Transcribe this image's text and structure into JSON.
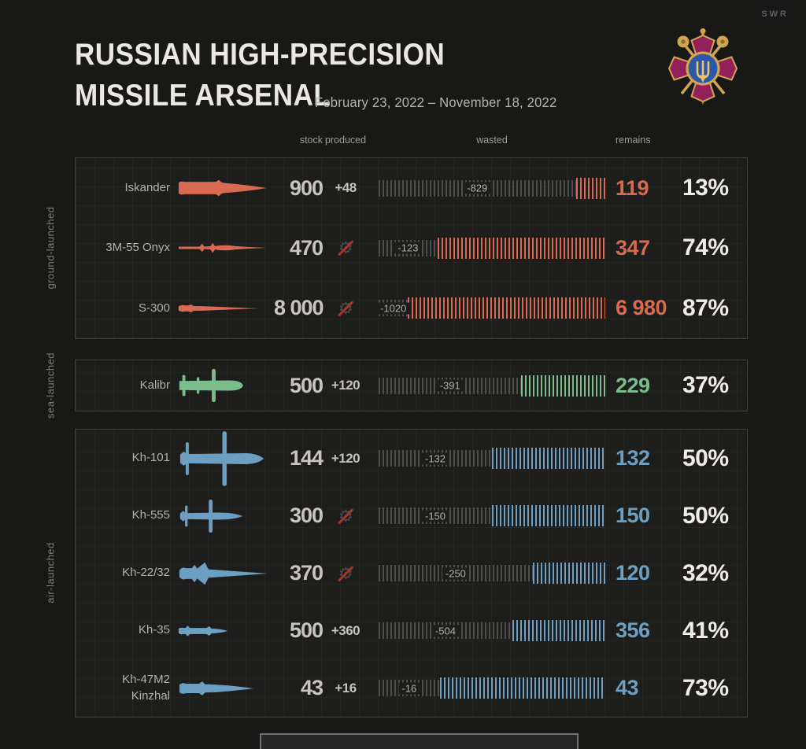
{
  "logo": "SWR",
  "header": {
    "title_line1": "RUSSIAN HIGH-PRECISION",
    "title_line2": "MISSILE ARSENAL",
    "subtitle": "February 23, 2022 – November 18, 2022"
  },
  "columns": {
    "stock": "stock",
    "produced": "produced",
    "wasted": "wasted",
    "remains": "remains"
  },
  "colors": {
    "ground": "#d76a50",
    "sea": "#7cbd8d",
    "air": "#6d9fc2"
  },
  "groups": [
    {
      "id": "ground",
      "label": "ground-launched",
      "color_key": "ground",
      "rows": [
        {
          "name": "Iskander",
          "missile": "iskander",
          "stock": "900",
          "produced": "+48",
          "wasted": "-829",
          "remains": "119",
          "percent": "13%",
          "percent_value": 13
        },
        {
          "name": "3M-55 Onyx",
          "missile": "onyx",
          "stock": "470",
          "produced": null,
          "wasted": "-123",
          "remains": "347",
          "percent": "74%",
          "percent_value": 74
        },
        {
          "name": "S-300",
          "missile": "s300",
          "stock": "8 000",
          "produced": null,
          "wasted": "-1020",
          "remains": "6 980",
          "percent": "87%",
          "percent_value": 87
        }
      ]
    },
    {
      "id": "sea",
      "label": "sea-launched",
      "color_key": "sea",
      "rows": [
        {
          "name": "Kalibr",
          "missile": "kalibr",
          "stock": "500",
          "produced": "+120",
          "wasted": "-391",
          "remains": "229",
          "percent": "37%",
          "percent_value": 37
        }
      ]
    },
    {
      "id": "air",
      "label": "air-launched",
      "color_key": "air",
      "rows": [
        {
          "name": "Kh-101",
          "missile": "kh101",
          "stock": "144",
          "produced": "+120",
          "wasted": "-132",
          "remains": "132",
          "percent": "50%",
          "percent_value": 50
        },
        {
          "name": "Kh-555",
          "missile": "kh555",
          "stock": "300",
          "produced": null,
          "wasted": "-150",
          "remains": "150",
          "percent": "50%",
          "percent_value": 50
        },
        {
          "name": "Kh-22/32",
          "missile": "kh2232",
          "stock": "370",
          "produced": null,
          "wasted": "-250",
          "remains": "120",
          "percent": "32%",
          "percent_value": 32
        },
        {
          "name": "Kh-35",
          "missile": "kh35",
          "stock": "500",
          "produced": "+360",
          "wasted": "-504",
          "remains": "356",
          "percent": "41%",
          "percent_value": 41
        },
        {
          "name": "Kh-47M2 Kinzhal",
          "missile": "kinzhal",
          "stock": "43",
          "produced": "+16",
          "wasted": "-16",
          "remains": "43",
          "percent": "73%",
          "percent_value": 73
        }
      ]
    }
  ],
  "chart_data": {
    "type": "bar",
    "title": "RUSSIAN HIGH-PRECISION MISSILE ARSENAL",
    "subtitle": "February 23, 2022 – November 18, 2022",
    "categories": [
      "Iskander",
      "3M-55 Onyx",
      "S-300",
      "Kalibr",
      "Kh-101",
      "Kh-555",
      "Kh-22/32",
      "Kh-35",
      "Kh-47M2 Kinzhal"
    ],
    "group_of_category": [
      "ground-launched",
      "ground-launched",
      "ground-launched",
      "sea-launched",
      "air-launched",
      "air-launched",
      "air-launched",
      "air-launched",
      "air-launched"
    ],
    "series": [
      {
        "name": "stock",
        "values": [
          900,
          470,
          8000,
          500,
          144,
          300,
          370,
          500,
          43
        ]
      },
      {
        "name": "produced",
        "values": [
          48,
          0,
          0,
          120,
          120,
          0,
          0,
          360,
          16
        ]
      },
      {
        "name": "wasted",
        "values": [
          -829,
          -123,
          -1020,
          -391,
          -132,
          -150,
          -250,
          -504,
          -16
        ]
      },
      {
        "name": "remains",
        "values": [
          119,
          347,
          6980,
          229,
          132,
          150,
          120,
          356,
          43
        ]
      },
      {
        "name": "remains_percent",
        "values": [
          13,
          74,
          87,
          37,
          50,
          50,
          32,
          41,
          73
        ]
      }
    ],
    "legend_position": "top",
    "grid": true,
    "bar_note": "each row bar shows wasted share (gray ticks) vs remains share (colored ticks), widths proportional to remains_percent"
  }
}
